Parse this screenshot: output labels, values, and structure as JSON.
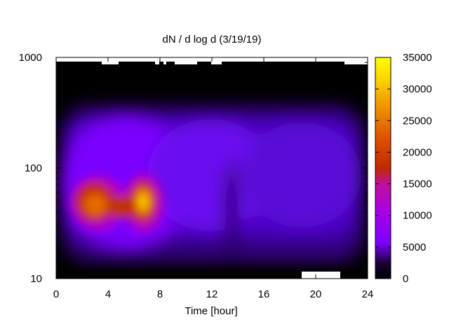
{
  "chart_data": {
    "type": "heatmap",
    "title": "dN / d log d (3/19/19)",
    "xlabel": "Time [hour]",
    "ylabel": "",
    "xlim": [
      0,
      24
    ],
    "ylim": [
      10,
      1000
    ],
    "y_scale": "log",
    "x_ticks": [
      0,
      4,
      8,
      12,
      16,
      20,
      24
    ],
    "y_ticks": [
      10,
      100,
      1000
    ],
    "colorbar": {
      "min": 0,
      "max": 35000,
      "ticks": [
        0,
        5000,
        10000,
        15000,
        20000,
        25000,
        30000,
        35000
      ],
      "palette": "black-blue-purple-red-orange-yellow"
    },
    "grid": false,
    "features": [
      {
        "x": 3.2,
        "y": 45,
        "value": 27000
      },
      {
        "x": 6.7,
        "y": 47,
        "value": 31000
      },
      {
        "x": 5.0,
        "y": 42,
        "value": 19000
      },
      {
        "x": 13.5,
        "y": 60,
        "value": 4000
      },
      {
        "x": 18.0,
        "y": 90,
        "value": 6500
      },
      {
        "x": 10.0,
        "y": 110,
        "value": 7000
      }
    ]
  }
}
